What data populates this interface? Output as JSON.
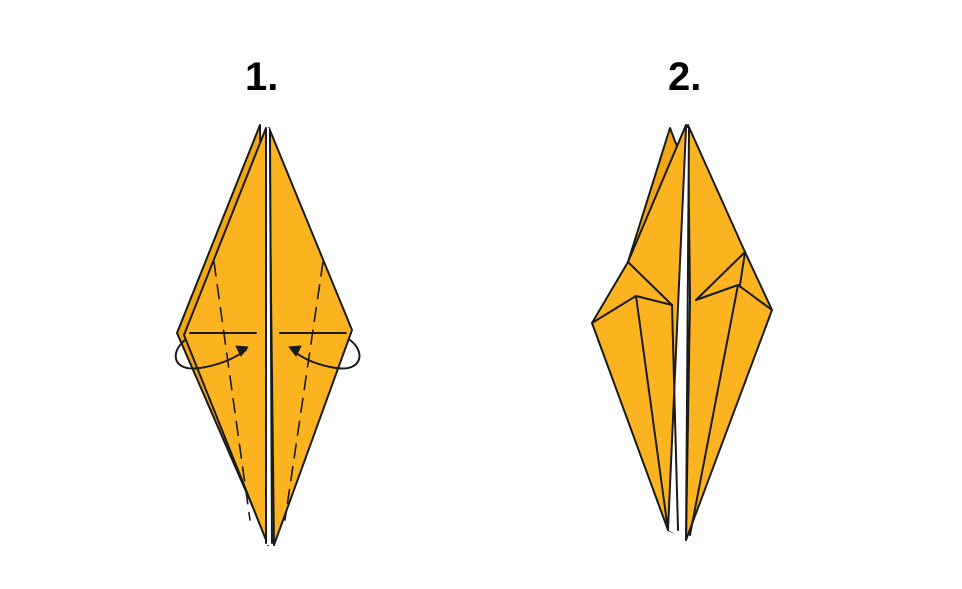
{
  "steps": [
    {
      "label": "1."
    },
    {
      "label": "2."
    }
  ],
  "colors": {
    "paper": "#FBB41F",
    "paper_shade": "#F3A613",
    "line": "#1A1A1A",
    "background": "#FFFFFF"
  }
}
